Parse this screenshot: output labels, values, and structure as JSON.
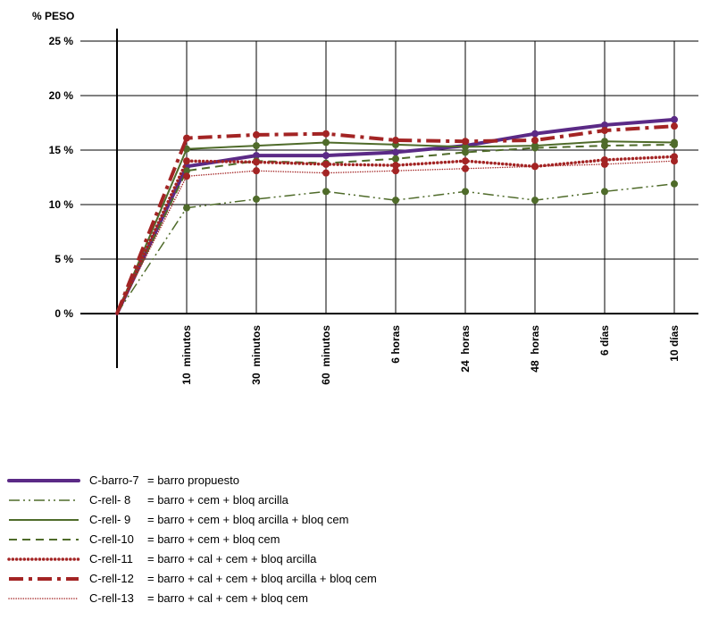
{
  "chart_data": {
    "type": "line",
    "ylabel": "% PESO",
    "ylim": [
      0,
      25
    ],
    "yticks": [
      "0 %",
      "5 %",
      "10 %",
      "15 %",
      "20 %",
      "25 %"
    ],
    "categories": [
      "",
      "10  minutos",
      "30  minutos",
      "60  minutos",
      "6 horas",
      "24  horas",
      "48  horas",
      "6 días",
      "10 días"
    ],
    "series": [
      {
        "name": "C-barro-7",
        "desc": "= barro propuesto",
        "color": "#5b2a86",
        "style": "solid-thick",
        "values": [
          0,
          13.5,
          14.5,
          14.5,
          14.8,
          15.4,
          16.5,
          17.3,
          17.8
        ]
      },
      {
        "name": "C-rell- 8",
        "desc": "= barro + cem + bloq arcilla",
        "color": "#4f6b2a",
        "style": "dashdotdot",
        "values": [
          0,
          9.7,
          10.5,
          11.2,
          10.4,
          11.2,
          10.4,
          11.2,
          11.9
        ]
      },
      {
        "name": "C-rell- 9",
        "desc": "= barro + cem + bloq arcilla + bloq cem",
        "color": "#4f6b2a",
        "style": "solid",
        "values": [
          0,
          15.1,
          15.4,
          15.7,
          15.5,
          15.3,
          15.4,
          15.8,
          15.7
        ]
      },
      {
        "name": "C-rell-10",
        "desc": "= barro + cem + bloq cem",
        "color": "#4f6b2a",
        "style": "dashed",
        "values": [
          0,
          13.1,
          14.0,
          13.8,
          14.2,
          14.8,
          15.2,
          15.4,
          15.5
        ]
      },
      {
        "name": "C-rell-11",
        "desc": "= barro + cal + cem + bloq arcilla",
        "color": "#a32424",
        "style": "dotted-thick",
        "values": [
          0,
          14.0,
          13.9,
          13.7,
          13.6,
          14.0,
          13.5,
          14.1,
          14.4
        ]
      },
      {
        "name": "C-rell-12",
        "desc": "= barro + cal + cem + bloq arcilla + bloq cem",
        "color": "#a32424",
        "style": "dashdot-thick",
        "values": [
          0,
          16.1,
          16.4,
          16.5,
          15.9,
          15.8,
          15.9,
          16.8,
          17.2
        ]
      },
      {
        "name": "C-rell-13",
        "desc": "= barro + cal + cem + bloq cem",
        "color": "#a32424",
        "style": "dotted",
        "values": [
          0,
          12.6,
          13.1,
          12.9,
          13.1,
          13.3,
          13.5,
          13.7,
          14.0
        ]
      }
    ],
    "grid": true,
    "legend_position": "bottom-left"
  }
}
